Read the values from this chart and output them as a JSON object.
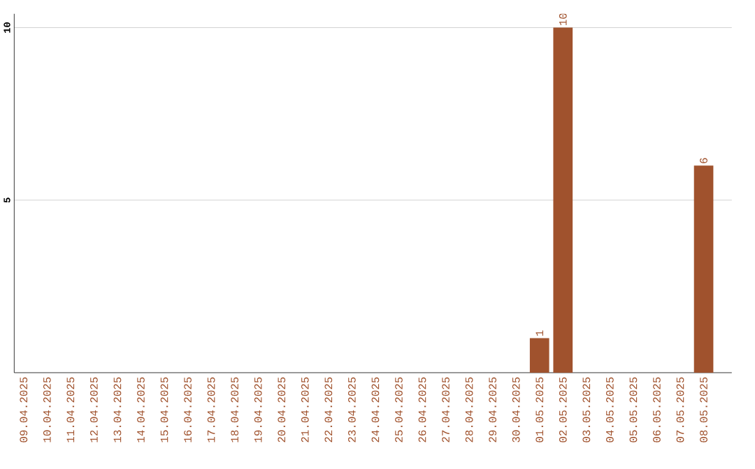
{
  "chart_data": {
    "type": "bar",
    "categories": [
      "09.04.2025",
      "10.04.2025",
      "11.04.2025",
      "12.04.2025",
      "13.04.2025",
      "14.04.2025",
      "15.04.2025",
      "16.04.2025",
      "17.04.2025",
      "18.04.2025",
      "19.04.2025",
      "20.04.2025",
      "21.04.2025",
      "22.04.2025",
      "23.04.2025",
      "24.04.2025",
      "25.04.2025",
      "26.04.2025",
      "27.04.2025",
      "28.04.2025",
      "29.04.2025",
      "30.04.2025",
      "01.05.2025",
      "02.05.2025",
      "03.05.2025",
      "04.05.2025",
      "05.05.2025",
      "06.05.2025",
      "07.05.2025",
      "08.05.2025"
    ],
    "values": [
      0,
      0,
      0,
      0,
      0,
      0,
      0,
      0,
      0,
      0,
      0,
      0,
      0,
      0,
      0,
      0,
      0,
      0,
      0,
      0,
      0,
      0,
      1,
      10,
      0,
      0,
      0,
      0,
      0,
      6
    ],
    "value_labels": [
      null,
      null,
      null,
      null,
      null,
      null,
      null,
      null,
      null,
      null,
      null,
      null,
      null,
      null,
      null,
      null,
      null,
      null,
      null,
      null,
      null,
      null,
      "1",
      "10",
      null,
      null,
      null,
      null,
      null,
      "6"
    ],
    "color": "#a0522d",
    "ylim": [
      0,
      10.4
    ],
    "yticks": [
      5,
      10
    ],
    "grid": "y"
  }
}
